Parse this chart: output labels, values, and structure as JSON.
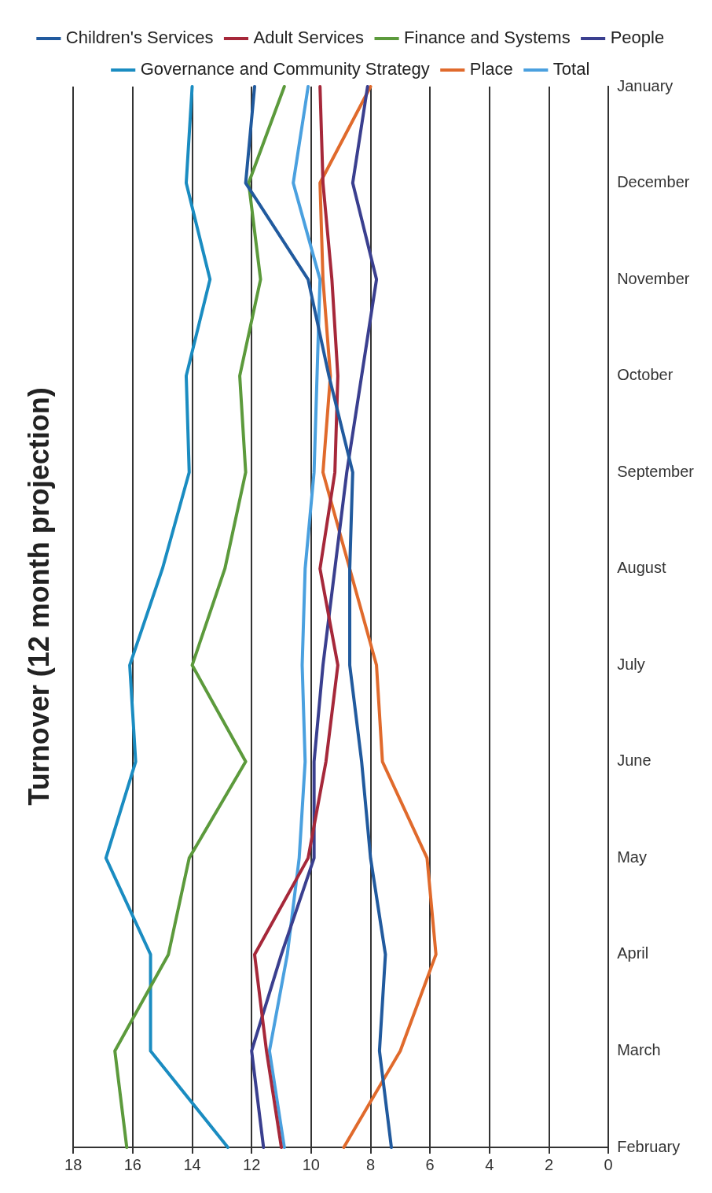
{
  "chart_data": {
    "type": "line",
    "title": "Turnover (12 month projection)",
    "orientation": "horizontal",
    "categories": [
      "January",
      "December",
      "November",
      "October",
      "September",
      "August",
      "July",
      "June",
      "May",
      "April",
      "March",
      "February"
    ],
    "series": [
      {
        "name": "Children's Services",
        "color": "#215a9e",
        "values": [
          11.9,
          12.2,
          10.1,
          9.4,
          8.6,
          8.7,
          8.7,
          8.3,
          8.0,
          7.5,
          7.7,
          7.3
        ]
      },
      {
        "name": "Adult Services",
        "color": "#a6283a",
        "values": [
          9.7,
          9.6,
          9.3,
          9.1,
          9.2,
          9.7,
          9.1,
          9.5,
          10.1,
          11.9,
          11.5,
          11.0
        ]
      },
      {
        "name": "Finance and Systems",
        "color": "#5c9a3c",
        "values": [
          10.9,
          12.1,
          11.7,
          12.4,
          12.2,
          12.9,
          14.0,
          12.2,
          14.1,
          14.8,
          16.6,
          16.2
        ]
      },
      {
        "name": "People",
        "color": "#3a3f8f",
        "values": [
          8.1,
          8.6,
          7.8,
          8.3,
          8.8,
          9.2,
          9.6,
          9.9,
          9.9,
          11.0,
          12.0,
          11.6
        ]
      },
      {
        "name": "Governance and Community Strategy",
        "color": "#1a8cc1",
        "values": [
          14.0,
          14.2,
          13.4,
          14.2,
          14.1,
          15.0,
          16.1,
          15.9,
          16.9,
          15.4,
          15.4,
          12.8
        ]
      },
      {
        "name": "Place",
        "color": "#e06a2c",
        "values": [
          8.0,
          9.7,
          9.6,
          9.35,
          9.6,
          8.7,
          7.8,
          7.6,
          6.1,
          5.8,
          7.0,
          8.9
        ]
      },
      {
        "name": "Total",
        "color": "#4aa0df",
        "values": [
          10.1,
          10.6,
          9.7,
          9.8,
          9.9,
          10.2,
          10.3,
          10.2,
          10.4,
          10.8,
          11.4,
          10.9
        ]
      }
    ],
    "xlim": [
      18,
      0
    ],
    "xticks": [
      0,
      2,
      4,
      6,
      8,
      10,
      12,
      14,
      16,
      18
    ],
    "grid": "x",
    "legend": "top",
    "marker": "none",
    "line_style": "solid"
  }
}
